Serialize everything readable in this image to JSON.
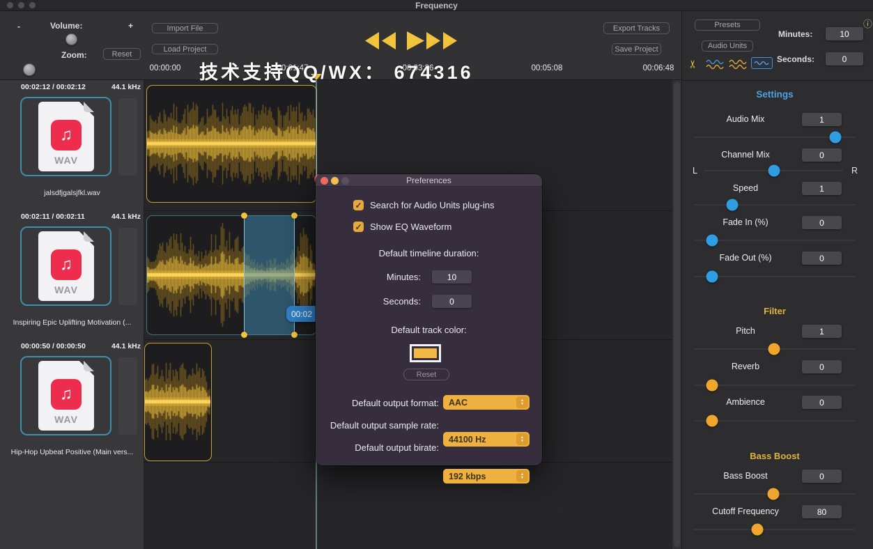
{
  "window": {
    "title": "Frequency"
  },
  "watermark": {
    "text": "技术支持QQ/WX： 674316"
  },
  "toolbar": {
    "minus": "-",
    "plus": "+",
    "volume_label": "Volume:",
    "zoom_label": "Zoom:",
    "reset_label": "Reset",
    "import_file": "Import File",
    "load_project": "Load Project",
    "export_tracks": "Export Tracks",
    "save_project": "Save Project"
  },
  "timeline": {
    "labels": [
      "00:00:00",
      "00:01:47",
      "00:03:36",
      "00:05:08",
      "00:06:48"
    ]
  },
  "right_top": {
    "presets": "Presets",
    "audio_units": "Audio Units",
    "minutes_label": "Minutes:",
    "minutes_value": "10",
    "seconds_label": "Seconds:",
    "seconds_value": "0"
  },
  "sidebar": {
    "files": [
      {
        "duration": "00:02:12 / 00:02:12",
        "sample_rate": "44.1 kHz",
        "type": "WAV",
        "name": "jalsdfjgalsjfkl.wav"
      },
      {
        "duration": "00:02:11 / 00:02:11",
        "sample_rate": "44.1 kHz",
        "type": "WAV",
        "name": "Inspiring Epic Uplifting Motivation (..."
      },
      {
        "duration": "00:00:50 / 00:00:50",
        "sample_rate": "44.1 kHz",
        "type": "WAV",
        "name": "Hip-Hop Upbeat Positive (Main vers..."
      }
    ]
  },
  "tracks": {
    "selection_badge": "00:02"
  },
  "settings": {
    "title": "Settings",
    "rows": [
      {
        "label": "Audio Mix",
        "value": "1"
      },
      {
        "label": "Channel Mix",
        "value": "0"
      },
      {
        "label": "Speed",
        "value": "1"
      },
      {
        "label": "Fade In (%)",
        "value": "0"
      },
      {
        "label": "Fade Out (%)",
        "value": "0"
      }
    ],
    "left_label": "L",
    "right_label": "R",
    "filter_title": "Filter",
    "filter_rows": [
      {
        "label": "Pitch",
        "value": "1"
      },
      {
        "label": "Reverb",
        "value": "0"
      },
      {
        "label": "Ambience",
        "value": "0"
      }
    ],
    "bass_title": "Bass Boost",
    "bass_rows": [
      {
        "label": "Bass Boost",
        "value": "0"
      },
      {
        "label": "Cutoff Frequency",
        "value": "80"
      }
    ]
  },
  "prefs": {
    "title": "Preferences",
    "checkboxes": [
      {
        "label": "Search for Audio Units plug-ins",
        "checked": true
      },
      {
        "label": "Show EQ Waveform",
        "checked": true
      }
    ],
    "duration_label": "Default timeline duration:",
    "minutes_label": "Minutes:",
    "minutes_value": "10",
    "seconds_label": "Seconds:",
    "seconds_value": "0",
    "track_color_label": "Default track color:",
    "reset_label": "Reset",
    "outputs": [
      {
        "label": "Default output format:",
        "value": "AAC"
      },
      {
        "label": "Default output sample rate:",
        "value": "44100 Hz"
      },
      {
        "label": "Default output birate:",
        "value": "192 kbps"
      }
    ]
  },
  "colors": {
    "accent_yellow": "#f2c33d",
    "accent_blue": "#2e9de4",
    "selection_blue": "#408ab0",
    "badge_blue": "#2f80c8",
    "settings_title_blue": "#4da3e2",
    "filter_title_yellow": "#e0b33c",
    "file_badge_red": "#ee2d4e",
    "dialog_bg": "#362e3d"
  }
}
